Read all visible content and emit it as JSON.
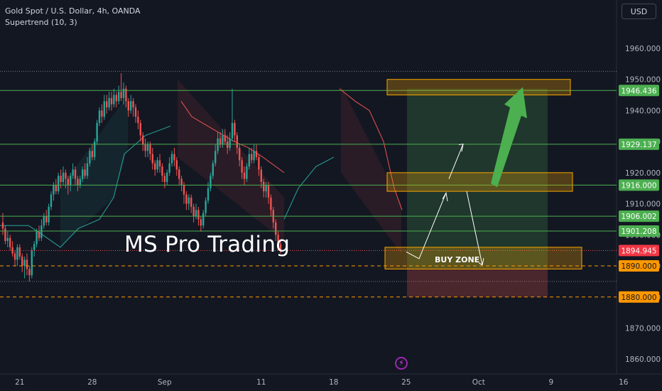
{
  "header": {
    "title": "Gold Spot / U.S. Dollar, 4h, OANDA",
    "indicator": "Supertrend (10, 3)",
    "currency": "USD"
  },
  "watermark": "MS Pro Trading",
  "annotations": {
    "buy_zone": "BUY ZONE"
  },
  "colors": {
    "background": "#131722",
    "up_candle": "#26a69a",
    "down_candle": "#ef5350",
    "level_line": "#4caf50",
    "dashed_support": "#ff9800",
    "zone_fill": "#f7a600",
    "target_arrow": "#4caf50"
  },
  "chart_data": {
    "type": "candlestick",
    "title": "Gold Spot / U.S. Dollar, 4h, OANDA",
    "indicator": "Supertrend (10, 3)",
    "ylim": [
      1855,
      1970
    ],
    "y_ticks": [
      1860,
      1870,
      1880,
      1890,
      1900,
      1910,
      1920,
      1930,
      1940,
      1950,
      1960
    ],
    "y_tick_labels": [
      "1860.000",
      "1870.000",
      "1880.000",
      "1890.000",
      "1900.000",
      "1910.000",
      "1920.000",
      "1930.000",
      "1940.000",
      "1950.000",
      "1960.000"
    ],
    "x_tick_labels": [
      "21",
      "28",
      "Sep",
      "11",
      "18",
      "25",
      "Oct",
      "9",
      "16"
    ],
    "x_tick_index": [
      7,
      37,
      67,
      107,
      137,
      167,
      197,
      227,
      257
    ],
    "price_levels": [
      {
        "label": "1946.436",
        "value": 1946.436,
        "kind": "resistance"
      },
      {
        "label": "1929.137",
        "value": 1929.137,
        "kind": "resistance"
      },
      {
        "label": "1916.000",
        "value": 1916.0,
        "kind": "resistance"
      },
      {
        "label": "1906.002",
        "value": 1906.002,
        "kind": "resistance"
      },
      {
        "label": "1901.208",
        "value": 1901.208,
        "kind": "resistance"
      },
      {
        "label": "1894.945",
        "value": 1894.945,
        "kind": "current"
      },
      {
        "label": "1890.000",
        "value": 1890.0,
        "kind": "support"
      },
      {
        "label": "1880.000",
        "value": 1880.0,
        "kind": "support"
      }
    ],
    "zones": [
      {
        "name": "target",
        "y1": 1945,
        "y2": 1950
      },
      {
        "name": "mid",
        "y1": 1914,
        "y2": 1920
      },
      {
        "name": "buy",
        "y1": 1889,
        "y2": 1896
      }
    ],
    "position": {
      "entry": 1889,
      "target": 1947,
      "stop": 1880
    },
    "candles": [
      [
        1904,
        1902,
        1907,
        1900
      ],
      [
        1902,
        1898,
        1903,
        1897
      ],
      [
        1898,
        1899,
        1901,
        1896
      ],
      [
        1899,
        1896,
        1900,
        1895
      ],
      [
        1896,
        1894,
        1898,
        1893
      ],
      [
        1894,
        1892,
        1895,
        1890
      ],
      [
        1892,
        1896,
        1897,
        1890
      ],
      [
        1896,
        1893,
        1897,
        1892
      ],
      [
        1893,
        1890,
        1894,
        1888
      ],
      [
        1890,
        1892,
        1893,
        1886
      ],
      [
        1892,
        1889,
        1894,
        1887
      ],
      [
        1889,
        1887,
        1890,
        1885
      ],
      [
        1887,
        1895,
        1896,
        1886
      ],
      [
        1895,
        1897,
        1898,
        1893
      ],
      [
        1897,
        1901,
        1902,
        1896
      ],
      [
        1901,
        1899,
        1903,
        1898
      ],
      [
        1899,
        1903,
        1905,
        1898
      ],
      [
        1903,
        1906,
        1907,
        1902
      ],
      [
        1906,
        1904,
        1908,
        1903
      ],
      [
        1904,
        1909,
        1910,
        1903
      ],
      [
        1909,
        1913,
        1914,
        1908
      ],
      [
        1913,
        1916,
        1917,
        1911
      ],
      [
        1916,
        1914,
        1918,
        1913
      ],
      [
        1914,
        1919,
        1920,
        1913
      ],
      [
        1919,
        1917,
        1921,
        1915
      ],
      [
        1917,
        1920,
        1922,
        1916
      ],
      [
        1920,
        1918,
        1921,
        1915
      ],
      [
        1918,
        1916,
        1919,
        1913
      ],
      [
        1916,
        1919,
        1920,
        1914
      ],
      [
        1919,
        1921,
        1923,
        1918
      ],
      [
        1921,
        1918,
        1922,
        1916
      ],
      [
        1918,
        1916,
        1919,
        1914
      ],
      [
        1916,
        1918,
        1919,
        1915
      ],
      [
        1918,
        1921,
        1922,
        1917
      ],
      [
        1921,
        1919,
        1923,
        1918
      ],
      [
        1919,
        1923,
        1925,
        1918
      ],
      [
        1923,
        1927,
        1928,
        1922
      ],
      [
        1927,
        1925,
        1929,
        1924
      ],
      [
        1925,
        1930,
        1931,
        1924
      ],
      [
        1930,
        1936,
        1937,
        1929
      ],
      [
        1936,
        1940,
        1941,
        1935
      ],
      [
        1940,
        1938,
        1942,
        1936
      ],
      [
        1938,
        1943,
        1945,
        1937
      ],
      [
        1943,
        1941,
        1945,
        1939
      ],
      [
        1941,
        1944,
        1946,
        1940
      ],
      [
        1944,
        1942,
        1946,
        1940
      ],
      [
        1942,
        1945,
        1947,
        1941
      ],
      [
        1945,
        1943,
        1946,
        1941
      ],
      [
        1943,
        1946,
        1948,
        1942
      ],
      [
        1946,
        1944,
        1952,
        1943
      ],
      [
        1944,
        1947,
        1949,
        1942
      ],
      [
        1947,
        1943,
        1948,
        1941
      ],
      [
        1943,
        1940,
        1944,
        1938
      ],
      [
        1940,
        1943,
        1945,
        1939
      ],
      [
        1943,
        1941,
        1944,
        1938
      ],
      [
        1941,
        1938,
        1942,
        1936
      ],
      [
        1938,
        1936,
        1940,
        1934
      ],
      [
        1936,
        1932,
        1937,
        1930
      ],
      [
        1932,
        1929,
        1933,
        1927
      ],
      [
        1929,
        1927,
        1931,
        1925
      ],
      [
        1927,
        1929,
        1930,
        1925
      ],
      [
        1929,
        1926,
        1930,
        1924
      ],
      [
        1926,
        1923,
        1928,
        1921
      ],
      [
        1923,
        1921,
        1924,
        1919
      ],
      [
        1921,
        1924,
        1925,
        1920
      ],
      [
        1924,
        1922,
        1926,
        1920
      ],
      [
        1922,
        1919,
        1923,
        1917
      ],
      [
        1919,
        1917,
        1920,
        1915
      ],
      [
        1917,
        1920,
        1921,
        1916
      ],
      [
        1920,
        1923,
        1925,
        1919
      ],
      [
        1923,
        1926,
        1927,
        1922
      ],
      [
        1926,
        1924,
        1928,
        1922
      ],
      [
        1924,
        1921,
        1925,
        1919
      ],
      [
        1921,
        1918,
        1922,
        1916
      ],
      [
        1918,
        1916,
        1919,
        1914
      ],
      [
        1916,
        1913,
        1917,
        1910
      ],
      [
        1913,
        1910,
        1914,
        1908
      ],
      [
        1910,
        1912,
        1913,
        1908
      ],
      [
        1912,
        1909,
        1913,
        1907
      ],
      [
        1909,
        1906,
        1910,
        1904
      ],
      [
        1906,
        1908,
        1910,
        1905
      ],
      [
        1908,
        1905,
        1909,
        1903
      ],
      [
        1905,
        1903,
        1906,
        1901
      ],
      [
        1903,
        1907,
        1908,
        1902
      ],
      [
        1907,
        1911,
        1912,
        1906
      ],
      [
        1911,
        1915,
        1917,
        1910
      ],
      [
        1915,
        1919,
        1920,
        1914
      ],
      [
        1919,
        1923,
        1924,
        1918
      ],
      [
        1923,
        1927,
        1929,
        1922
      ],
      [
        1927,
        1931,
        1933,
        1926
      ],
      [
        1931,
        1929,
        1933,
        1928
      ],
      [
        1929,
        1932,
        1934,
        1928
      ],
      [
        1932,
        1930,
        1934,
        1929
      ],
      [
        1930,
        1928,
        1932,
        1926
      ],
      [
        1928,
        1931,
        1933,
        1927
      ],
      [
        1931,
        1936,
        1947,
        1930
      ],
      [
        1936,
        1932,
        1937,
        1930
      ],
      [
        1932,
        1928,
        1933,
        1926
      ],
      [
        1928,
        1924,
        1929,
        1922
      ],
      [
        1924,
        1920,
        1925,
        1918
      ],
      [
        1920,
        1918,
        1922,
        1916
      ],
      [
        1918,
        1922,
        1923,
        1917
      ],
      [
        1922,
        1926,
        1928,
        1921
      ],
      [
        1926,
        1924,
        1928,
        1923
      ],
      [
        1924,
        1927,
        1929,
        1923
      ],
      [
        1927,
        1925,
        1929,
        1924
      ],
      [
        1925,
        1921,
        1926,
        1919
      ],
      [
        1921,
        1917,
        1922,
        1915
      ],
      [
        1917,
        1914,
        1918,
        1912
      ],
      [
        1914,
        1916,
        1917,
        1912
      ],
      [
        1916,
        1912,
        1917,
        1910
      ],
      [
        1912,
        1908,
        1913,
        1906
      ],
      [
        1908,
        1904,
        1909,
        1902
      ],
      [
        1904,
        1900,
        1905,
        1898
      ],
      [
        1900,
        1897,
        1901,
        1895
      ],
      [
        1897,
        1895,
        1898,
        1894
      ]
    ]
  }
}
